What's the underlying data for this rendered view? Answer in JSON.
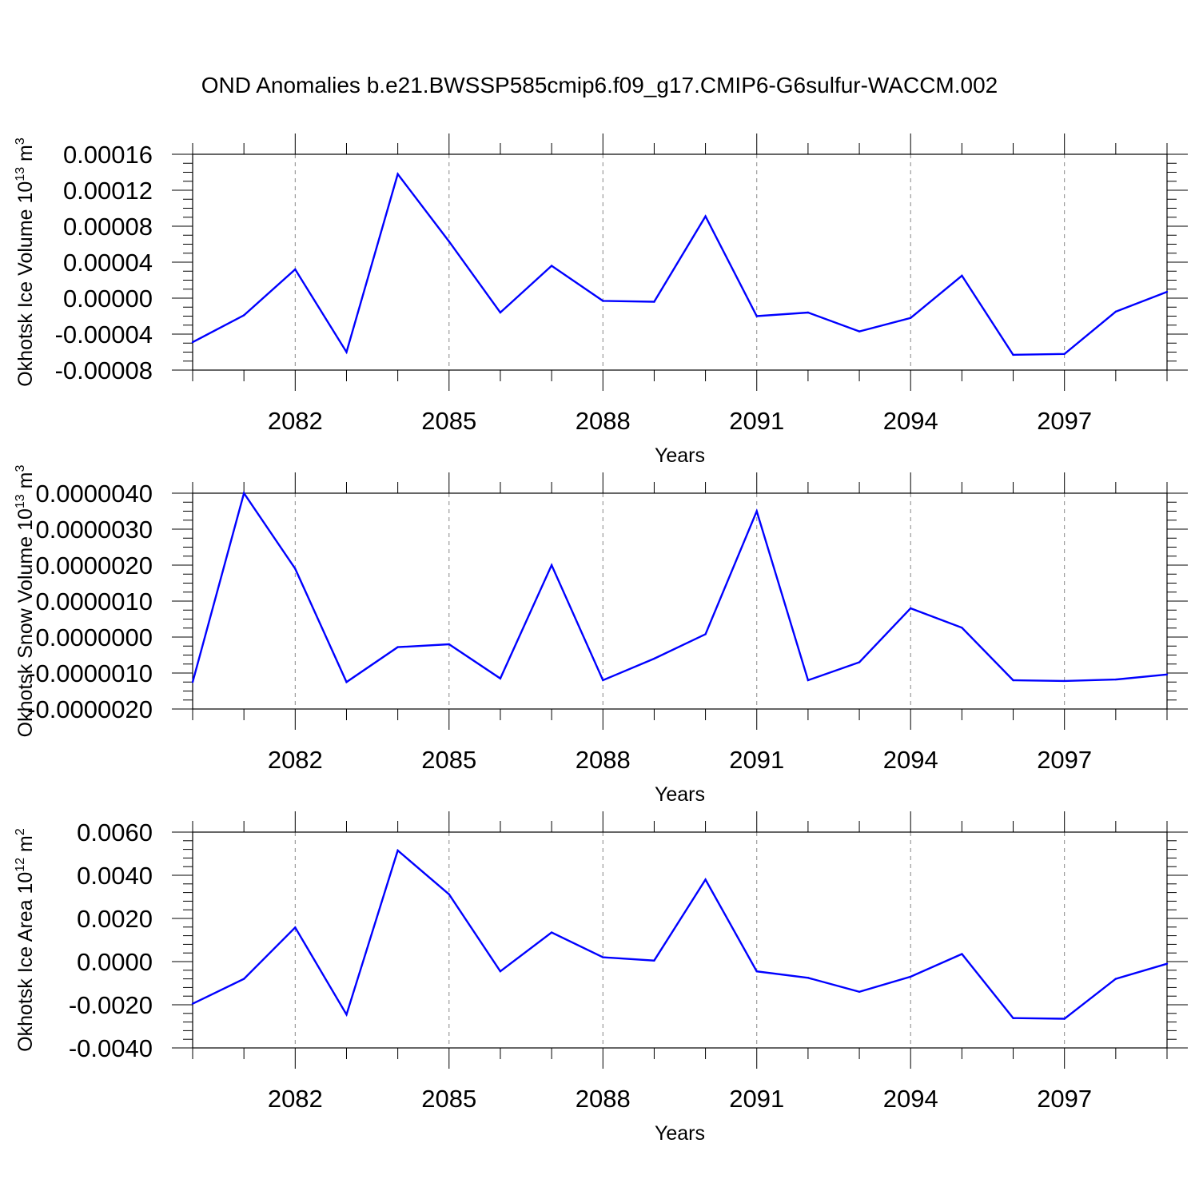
{
  "title": "OND Anomalies b.e21.BWSSP585cmip6.f09_g17.CMIP6-G6sulfur-WACCM.002",
  "line_color": "#0000ff",
  "chart_data": [
    {
      "type": "line",
      "xlabel": "Years",
      "ylabel": "Okhotsk Ice Volume 10",
      "ylabel_exponent": "13",
      "ylabel_unit": " m",
      "ylabel_unit_exponent": "3",
      "xlim": [
        2080,
        2099
      ],
      "ylim": [
        -8e-05,
        0.00016
      ],
      "x_major_ticks": [
        2082,
        2085,
        2088,
        2091,
        2094,
        2097
      ],
      "x_tick_labels": [
        "2082",
        "2085",
        "2088",
        "2091",
        "2094",
        "2097"
      ],
      "y_ticks": [
        0.00016,
        0.00012,
        8e-05,
        4e-05,
        0.0,
        -4e-05,
        -8e-05
      ],
      "y_tick_labels": [
        "0.00016",
        "0.00012",
        "0.00008",
        "0.00004",
        "0.00000",
        "-0.00004",
        "-0.00008"
      ],
      "y_minor_step": 1e-05,
      "grid": "dashed vertical at labeled years",
      "x": [
        2080,
        2081,
        2082,
        2083,
        2084,
        2085,
        2086,
        2087,
        2088,
        2089,
        2090,
        2091,
        2092,
        2093,
        2094,
        2095,
        2096,
        2097,
        2098,
        2099
      ],
      "values": [
        -4.9e-05,
        -1.9e-05,
        3.2e-05,
        -6e-05,
        0.000138,
        6.3e-05,
        -1.6e-05,
        3.6e-05,
        -3e-06,
        -4e-06,
        9.1e-05,
        -2e-05,
        -1.6e-05,
        -3.7e-05,
        -2.2e-05,
        2.5e-05,
        -6.3e-05,
        -6.2e-05,
        -1.5e-05,
        7e-06
      ]
    },
    {
      "type": "line",
      "xlabel": "Years",
      "ylabel": "Okhotsk Snow Volume 10",
      "ylabel_exponent": "13",
      "ylabel_unit": " m",
      "ylabel_unit_exponent": "3",
      "xlim": [
        2080,
        2099
      ],
      "ylim": [
        -2e-06,
        4e-06
      ],
      "x_major_ticks": [
        2082,
        2085,
        2088,
        2091,
        2094,
        2097
      ],
      "x_tick_labels": [
        "2082",
        "2085",
        "2088",
        "2091",
        "2094",
        "2097"
      ],
      "y_ticks": [
        4e-06,
        3e-06,
        2e-06,
        1e-06,
        0.0,
        -1e-06,
        -2e-06
      ],
      "y_tick_labels": [
        "0.0000040",
        "0.0000030",
        "0.0000020",
        "0.0000010",
        "0.0000000",
        "-0.0000010",
        "-0.0000020"
      ],
      "y_minor_step": 2.5e-07,
      "grid": "dashed vertical at labeled years",
      "x": [
        2080,
        2081,
        2082,
        2083,
        2084,
        2085,
        2086,
        2087,
        2088,
        2089,
        2090,
        2091,
        2092,
        2093,
        2094,
        2095,
        2096,
        2097,
        2098,
        2099
      ],
      "values": [
        -1.25e-06,
        4e-06,
        1.9e-06,
        -1.25e-06,
        -2.8e-07,
        -2e-07,
        -1.15e-06,
        2e-06,
        -1.2e-06,
        -6e-07,
        8e-08,
        3.5e-06,
        -1.2e-06,
        -7e-07,
        8e-07,
        2.6e-07,
        -1.2e-06,
        -1.22e-06,
        -1.18e-06,
        -1.04e-06
      ]
    },
    {
      "type": "line",
      "xlabel": "Years",
      "ylabel": "Okhotsk Ice Area 10",
      "ylabel_exponent": "12",
      "ylabel_unit": " m",
      "ylabel_unit_exponent": "2",
      "xlim": [
        2080,
        2099
      ],
      "ylim": [
        -0.004,
        0.006
      ],
      "x_major_ticks": [
        2082,
        2085,
        2088,
        2091,
        2094,
        2097
      ],
      "x_tick_labels": [
        "2082",
        "2085",
        "2088",
        "2091",
        "2094",
        "2097"
      ],
      "y_ticks": [
        0.006,
        0.004,
        0.002,
        0.0,
        -0.002,
        -0.004
      ],
      "y_tick_labels": [
        "0.0060",
        "0.0040",
        "0.0020",
        "0.0000",
        "-0.0020",
        "-0.0040"
      ],
      "y_minor_step": 0.0004,
      "grid": "dashed vertical at labeled years",
      "x": [
        2080,
        2081,
        2082,
        2083,
        2084,
        2085,
        2086,
        2087,
        2088,
        2089,
        2090,
        2091,
        2092,
        2093,
        2094,
        2095,
        2096,
        2097,
        2098,
        2099
      ],
      "values": [
        -0.00195,
        -0.0008,
        0.00158,
        -0.00245,
        0.00515,
        0.00312,
        -0.00045,
        0.00135,
        0.0002,
        5e-05,
        0.0038,
        -0.00045,
        -0.00075,
        -0.0014,
        -0.0007,
        0.00035,
        -0.00262,
        -0.00265,
        -0.0008,
        -0.0001
      ]
    }
  ]
}
